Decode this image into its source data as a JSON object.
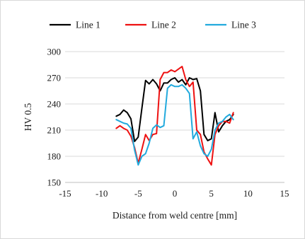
{
  "chart_data": {
    "type": "line",
    "xlabel": "Distance from weld centre [mm]",
    "ylabel": "HV 0.5",
    "xlim": [
      -15,
      15
    ],
    "ylim": [
      150,
      300
    ],
    "xticks": [
      -15,
      -10,
      -5,
      0,
      5,
      10,
      15
    ],
    "yticks": [
      150,
      180,
      210,
      240,
      270,
      300
    ],
    "grid": "horizontal",
    "legend": "top",
    "series": [
      {
        "name": "Line 1",
        "color": "#000000",
        "x": [
          -8,
          -7.5,
          -7,
          -6.5,
          -6,
          -5.5,
          -5,
          -4.5,
          -4,
          -3.5,
          -3,
          -2.5,
          -2,
          -1.5,
          -1,
          -0.5,
          0,
          0.5,
          1,
          1.5,
          2,
          2.5,
          3,
          3.5,
          4,
          4.5,
          5,
          5.5,
          6,
          6.5,
          7,
          7.5,
          8
        ],
        "y": [
          226,
          228,
          233,
          230,
          223,
          197,
          202,
          235,
          267,
          263,
          268,
          263,
          255,
          264,
          264,
          268,
          270,
          265,
          268,
          262,
          270,
          268,
          269,
          255,
          205,
          198,
          200,
          230,
          208,
          215,
          220,
          222,
          228
        ]
      },
      {
        "name": "Line 2",
        "color": "#ee1111",
        "x": [
          -8,
          -7.5,
          -7,
          -6.5,
          -6,
          -5.5,
          -5,
          -4.5,
          -4,
          -3.5,
          -3,
          -2.5,
          -2,
          -1.5,
          -1,
          -0.5,
          0,
          0.5,
          1,
          1.5,
          2,
          2.5,
          3,
          3.5,
          4,
          4.5,
          5,
          5.5,
          6,
          6.5,
          7,
          7.5,
          8
        ],
        "y": [
          212,
          215,
          212,
          210,
          203,
          190,
          172,
          188,
          205,
          198,
          205,
          206,
          268,
          276,
          276,
          279,
          277,
          280,
          283,
          268,
          260,
          265,
          210,
          205,
          185,
          177,
          170,
          205,
          215,
          220,
          220,
          218,
          230
        ]
      },
      {
        "name": "Line 3",
        "color": "#22aadd",
        "x": [
          -8,
          -7.5,
          -7,
          -6.5,
          -6,
          -5.5,
          -5,
          -4.5,
          -4,
          -3.5,
          -3,
          -2.5,
          -2,
          -1.5,
          -1,
          -0.5,
          0,
          0.5,
          1,
          1.5,
          2,
          2.5,
          3,
          3.5,
          4,
          4.5,
          5,
          5.5,
          6,
          6.5,
          7,
          7.5,
          8
        ],
        "y": [
          222,
          220,
          218,
          217,
          212,
          187,
          170,
          180,
          183,
          195,
          212,
          216,
          213,
          215,
          258,
          262,
          260,
          260,
          262,
          258,
          252,
          200,
          208,
          192,
          183,
          180,
          188,
          210,
          218,
          220,
          225,
          228,
          222
        ]
      }
    ]
  }
}
